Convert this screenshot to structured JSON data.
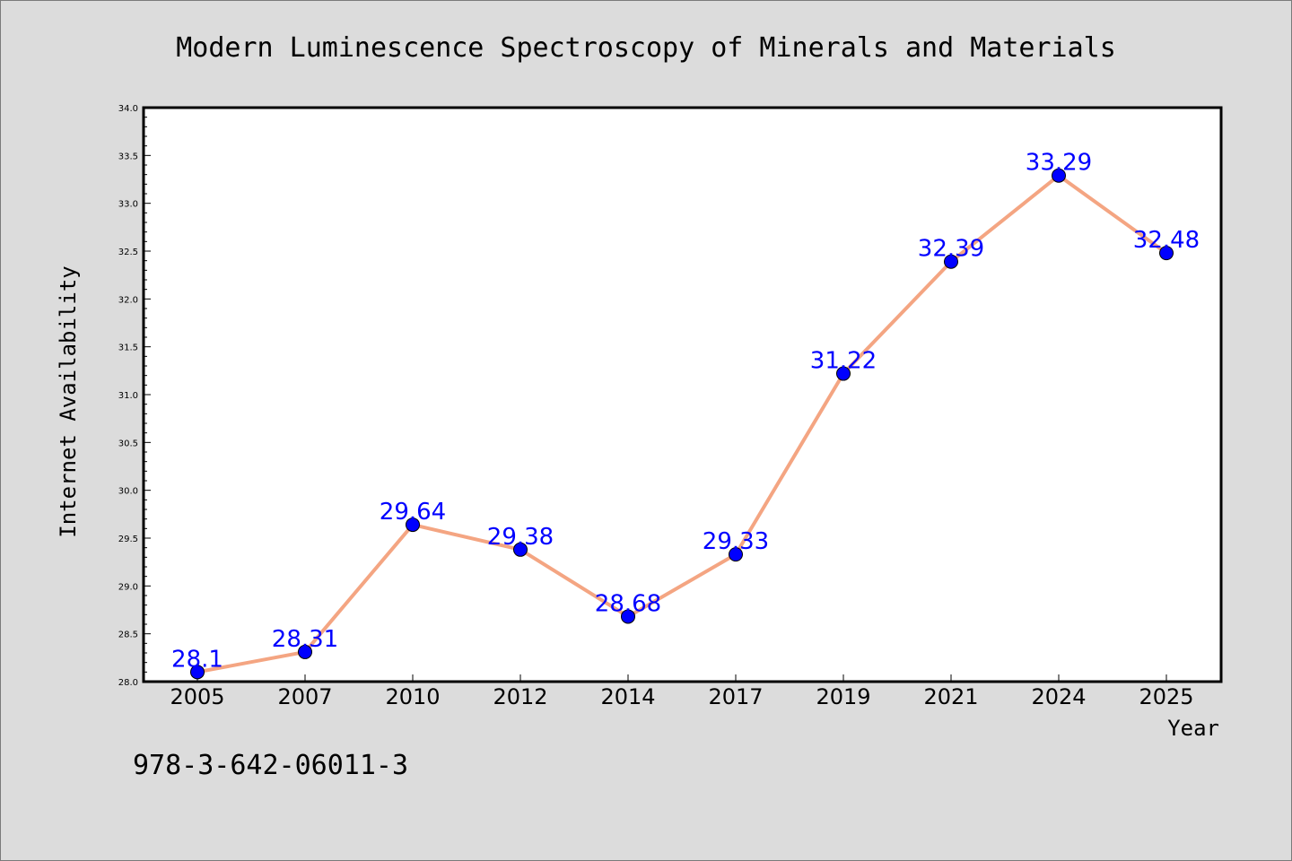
{
  "chart_data": {
    "type": "line",
    "title": "Modern Luminescence Spectroscopy of Minerals and Materials",
    "xlabel": "Year",
    "ylabel": "Internet Availability",
    "categories": [
      "2005",
      "2007",
      "2010",
      "2012",
      "2014",
      "2017",
      "2019",
      "2021",
      "2024",
      "2025"
    ],
    "values": [
      28.1,
      28.31,
      29.64,
      29.38,
      28.68,
      29.33,
      31.22,
      32.39,
      33.29,
      32.48
    ],
    "data_labels": [
      "28.1",
      "28.31",
      "29.64",
      "29.38",
      "28.68",
      "29.33",
      "31.22",
      "32.39",
      "33.29",
      "32.48"
    ],
    "ylim": [
      28.0,
      34.0
    ],
    "yticks": [
      "28.0",
      "28.5",
      "29.0",
      "29.5",
      "30.0",
      "30.5",
      "31.0",
      "31.5",
      "32.0",
      "32.5",
      "33.0",
      "33.5",
      "34.0"
    ],
    "grid": false,
    "legend": "none",
    "colors": {
      "line": "#f4a582",
      "marker": "#0000ff",
      "label": "#0000ff",
      "plot_bg": "#ffffff",
      "page_bg": "#dcdcdc"
    }
  },
  "footer": {
    "isbn": "978-3-642-06011-3"
  }
}
